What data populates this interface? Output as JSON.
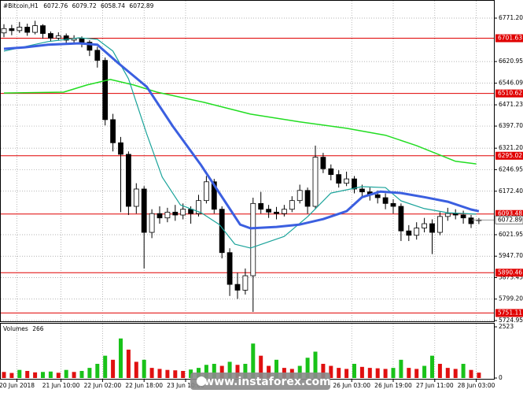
{
  "chart_data": {
    "type": "candlestick",
    "symbol": "#Bitcoin,H1",
    "watermark": "www.instaforex.com",
    "ylim": [
      5724.95,
      6771.2
    ],
    "yticks": [
      {
        "value": 6771.2,
        "label": "6771.20"
      },
      6620.95,
      6546.09,
      6471.23,
      {
        "value": 6397.7,
        "label": "6397.70"
      },
      {
        "value": 6321.2,
        "label": "6321.20"
      },
      6246.95,
      {
        "value": 6172.4,
        "label": "6172.40"
      },
      6021.95,
      {
        "value": 5947.7,
        "label": "5947.70"
      },
      5873.45,
      {
        "value": 5799.2,
        "label": "5799.20"
      },
      5724.95
    ],
    "xticks": [
      {
        "value": 5,
        "label": "20 Jun 2018"
      },
      {
        "value": 22,
        "label": "21 Jun 10:00"
      },
      {
        "value": 38,
        "label": "22 Jun 02:00"
      },
      {
        "value": 54,
        "label": "22 Jun 18:00"
      },
      {
        "value": 70,
        "label": "23 Jun 10:00"
      },
      {
        "value": 134,
        "label": "26 Jun 03:00"
      },
      {
        "value": 150,
        "label": "26 Jun 19:00"
      },
      {
        "value": 166,
        "label": "27 Jun 11:00"
      },
      {
        "value": 182,
        "label": "28 Jun 03:00"
      }
    ],
    "grid": true,
    "levels": [
      6701.63,
      6510.62,
      6295.02,
      6093.48,
      5890.46,
      5751.11
    ],
    "level_color": "#e00000",
    "x": [
      0,
      3,
      6,
      9,
      12,
      15,
      18,
      21,
      24,
      27,
      30,
      33,
      36,
      39,
      42,
      45,
      48,
      51,
      54,
      57,
      60,
      63,
      66,
      69,
      72,
      75,
      78,
      81,
      84,
      87,
      90,
      93,
      96,
      99,
      102,
      105,
      108,
      111,
      114,
      117,
      120,
      123,
      126,
      129,
      132,
      135,
      138,
      141,
      144,
      147,
      150,
      153,
      156,
      159,
      162,
      165,
      168,
      171,
      174,
      177,
      180,
      183
    ],
    "open": [
      6720,
      6735,
      6728,
      6740,
      6722,
      6745,
      6718,
      6702,
      6710,
      6695,
      6700,
      6688,
      6660,
      6625,
      6420,
      6340,
      6300,
      6120,
      6180,
      6030,
      6095,
      6080,
      6100,
      6090,
      6110,
      6095,
      6140,
      6205,
      6110,
      5960,
      5850,
      5830,
      5880,
      6130,
      6110,
      6100,
      6095,
      6110,
      6140,
      6175,
      6120,
      6290,
      6250,
      6230,
      6200,
      6215,
      6180,
      6170,
      6160,
      6150,
      6130,
      6120,
      6035,
      6020,
      6045,
      6060,
      6030,
      6085,
      6095,
      6090,
      6080,
      6072.76
    ],
    "high": [
      6750,
      6748,
      6758,
      6752,
      6762,
      6750,
      6725,
      6722,
      6718,
      6712,
      6708,
      6695,
      6672,
      6635,
      6440,
      6360,
      6310,
      6200,
      6190,
      6110,
      6120,
      6115,
      6125,
      6130,
      6120,
      6160,
      6225,
      6215,
      6120,
      5975,
      5890,
      5905,
      6150,
      6170,
      6125,
      6118,
      6125,
      6155,
      6195,
      6185,
      6330,
      6305,
      6265,
      6245,
      6240,
      6225,
      6195,
      6185,
      6175,
      6165,
      6145,
      6130,
      6055,
      6065,
      6080,
      6075,
      6100,
      6115,
      6110,
      6105,
      6090,
      6079.72
    ],
    "low": [
      6705,
      6712,
      6720,
      6710,
      6715,
      6700,
      6690,
      6695,
      6680,
      6685,
      6670,
      6640,
      6600,
      6400,
      6310,
      6100,
      6090,
      6095,
      5905,
      6010,
      6060,
      6065,
      6070,
      6075,
      6060,
      6085,
      6130,
      6095,
      5940,
      5810,
      5800,
      5815,
      5755,
      6095,
      6080,
      6075,
      6085,
      6100,
      6130,
      6095,
      6110,
      6235,
      6210,
      6185,
      6190,
      6165,
      6150,
      6140,
      6130,
      6110,
      6095,
      6000,
      6000,
      6005,
      6030,
      5955,
      6020,
      6070,
      6075,
      6060,
      6045,
      6058.74
    ],
    "close": [
      6735,
      6728,
      6740,
      6722,
      6745,
      6718,
      6702,
      6710,
      6695,
      6700,
      6688,
      6660,
      6625,
      6420,
      6340,
      6300,
      6120,
      6180,
      6030,
      6095,
      6080,
      6100,
      6090,
      6110,
      6095,
      6140,
      6205,
      6110,
      5960,
      5850,
      5830,
      5880,
      6130,
      6110,
      6100,
      6095,
      6110,
      6140,
      6175,
      6120,
      6290,
      6250,
      6230,
      6200,
      6215,
      6180,
      6170,
      6160,
      6150,
      6130,
      6120,
      6035,
      6020,
      6045,
      6060,
      6030,
      6085,
      6095,
      6090,
      6080,
      6060,
      6072.89
    ],
    "volume_label": "Volumes",
    "volume_current": 266,
    "volume": [
      300,
      250,
      400,
      350,
      280,
      300,
      320,
      260,
      400,
      300,
      350,
      500,
      700,
      1100,
      900,
      1950,
      1400,
      800,
      900,
      500,
      450,
      400,
      380,
      350,
      420,
      500,
      650,
      700,
      600,
      800,
      650,
      700,
      1700,
      1100,
      600,
      900,
      500,
      450,
      600,
      1000,
      1300,
      700,
      600,
      500,
      450,
      700,
      550,
      500,
      480,
      450,
      500,
      900,
      500,
      450,
      600,
      1100,
      700,
      500,
      450,
      700,
      400,
      266
    ],
    "y2lim": [
      0,
      2523
    ],
    "y2ticks": [
      0,
      2523
    ],
    "volume_up_color": "#19c219",
    "volume_down_color": "#e01010",
    "lines": [
      {
        "color": "#22dd22",
        "width": 1.5,
        "x": [
          0,
          23,
          32,
          41,
          50,
          59,
          77,
          95,
          114,
          132,
          147,
          159,
          174,
          182
        ],
        "values": [
          6512,
          6515,
          6540,
          6559,
          6540,
          6515,
          6480,
          6439,
          6412,
          6390,
          6366,
          6330,
          6276,
          6267
        ]
      },
      {
        "color": "#1aa39a",
        "width": 1.2,
        "x": [
          0,
          17,
          29,
          36,
          42,
          48,
          55,
          61,
          68,
          76,
          83,
          89,
          95,
          108,
          117,
          126,
          138,
          147,
          153,
          162,
          171,
          182
        ],
        "values": [
          6657,
          6690,
          6703,
          6698,
          6657,
          6561,
          6371,
          6221,
          6125,
          6098,
          6057,
          5989,
          5976,
          6016,
          6084,
          6166,
          6188,
          6185,
          6139,
          6112,
          6098,
          6093
        ]
      },
      {
        "color": "#3b5fe0",
        "width": 3,
        "x": [
          0,
          8,
          17,
          29,
          36,
          44,
          55,
          65,
          76,
          85,
          91,
          95,
          105,
          114,
          123,
          132,
          138,
          145,
          153,
          162,
          171,
          180,
          183
        ],
        "values": [
          6665,
          6670,
          6679,
          6684,
          6679,
          6616,
          6534,
          6398,
          6262,
          6139,
          6057,
          6044,
          6049,
          6057,
          6076,
          6103,
          6152,
          6171,
          6166,
          6152,
          6136,
          6109,
          6103
        ]
      }
    ]
  }
}
